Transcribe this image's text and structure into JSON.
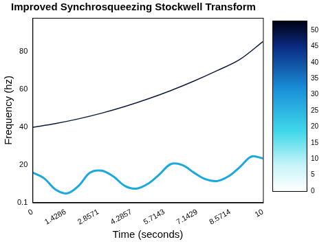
{
  "chart_data": {
    "type": "line",
    "title": "Improved Synchrosqueezing Stockwell Transform",
    "x_label": "Time (seconds)",
    "y_label": "Frequency (hz)",
    "grid": false,
    "series": [
      {
        "color": "#0a1a3a",
        "x": [
          0,
          1,
          2,
          3,
          4,
          5,
          6,
          7,
          8,
          9,
          10
        ],
        "values": [
          40,
          42,
          44.5,
          47.5,
          51,
          55,
          59.5,
          64.5,
          70,
          76,
          85.5
        ]
      },
      {
        "color": "#1aa8e0",
        "x": [
          0,
          0.5,
          1,
          1.5,
          2,
          2.5,
          3,
          3.5,
          4,
          4.5,
          5,
          5.5,
          6,
          6.5,
          7,
          7.5,
          8,
          8.5,
          9,
          9.5,
          10
        ],
        "values": [
          16,
          13,
          7,
          5,
          9,
          16,
          17,
          14,
          9,
          7.5,
          10,
          15,
          20.5,
          20,
          16,
          12.5,
          11.5,
          14,
          19,
          24.5,
          23.5
        ]
      }
    ],
    "xlim": [
      0,
      10
    ],
    "xticks": [
      0,
      1.4286,
      2.8571,
      4.2857,
      5.7143,
      7.1429,
      8.5714,
      10
    ],
    "ylim": [
      0.1,
      98
    ],
    "yticks": [
      0.1,
      20,
      40,
      60,
      80
    ],
    "colorbar": {
      "range": [
        0,
        53
      ],
      "ticks": [
        0,
        5,
        10,
        15,
        20,
        25,
        30,
        35,
        40,
        45,
        50
      ]
    }
  }
}
